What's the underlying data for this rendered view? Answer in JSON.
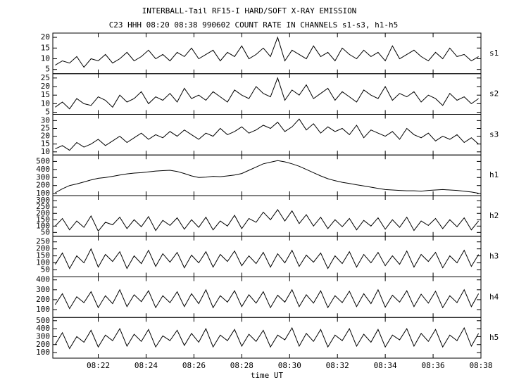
{
  "chart_data": [
    {
      "type": "line",
      "title": "INTERBALL-Tail RF15-I HARD/SOFT X-RAY EMISSION",
      "subtitle": "C23 HHH 08:20 08:38 990602  COUNT RATE IN CHANNELS s1-s3, h1-h5",
      "x": [
        20.2,
        20.5,
        20.8,
        21.1,
        21.4,
        21.7,
        22,
        22.3,
        22.6,
        22.9,
        23.2,
        23.5,
        23.8,
        24.1,
        24.4,
        24.7,
        25,
        25.3,
        25.6,
        25.9,
        26.2,
        26.5,
        26.8,
        27.1,
        27.4,
        27.7,
        28,
        28.3,
        28.6,
        28.9,
        29.2,
        29.5,
        29.8,
        30.1,
        30.4,
        30.7,
        31,
        31.3,
        31.6,
        31.9,
        32.2,
        32.5,
        32.8,
        33.1,
        33.4,
        33.7,
        34,
        34.3,
        34.6,
        34.9,
        35.2,
        35.5,
        35.8,
        36.1,
        36.4,
        36.7,
        37,
        37.3,
        37.6,
        37.9
      ],
      "series": [
        {
          "name": "s1",
          "color": "#000000",
          "values": [
            7,
            9,
            8,
            11,
            6,
            10,
            9,
            12,
            8,
            10,
            13,
            9,
            11,
            14,
            10,
            12,
            9,
            13,
            11,
            15,
            10,
            12,
            14,
            9,
            13,
            11,
            16,
            10,
            12,
            15,
            11,
            20,
            9,
            14,
            12,
            10,
            16,
            11,
            13,
            9,
            15,
            12,
            10,
            14,
            11,
            13,
            9,
            16,
            10,
            12,
            14,
            11,
            9,
            13,
            10,
            15,
            11,
            12,
            9,
            11
          ]
        }
      ],
      "xlim": [
        20.1,
        38
      ],
      "xticks": [
        22,
        24,
        26,
        28,
        30,
        32,
        34,
        36,
        38
      ],
      "ylim": [
        3,
        22
      ],
      "yticks": [
        5,
        10,
        15,
        20
      ]
    },
    {
      "type": "line",
      "x": [
        20.2,
        20.5,
        20.8,
        21.1,
        21.4,
        21.7,
        22,
        22.3,
        22.6,
        22.9,
        23.2,
        23.5,
        23.8,
        24.1,
        24.4,
        24.7,
        25,
        25.3,
        25.6,
        25.9,
        26.2,
        26.5,
        26.8,
        27.1,
        27.4,
        27.7,
        28,
        28.3,
        28.6,
        28.9,
        29.2,
        29.5,
        29.8,
        30.1,
        30.4,
        30.7,
        31,
        31.3,
        31.6,
        31.9,
        32.2,
        32.5,
        32.8,
        33.1,
        33.4,
        33.7,
        34,
        34.3,
        34.6,
        34.9,
        35.2,
        35.5,
        35.8,
        36.1,
        36.4,
        36.7,
        37,
        37.3,
        37.6,
        37.9
      ],
      "series": [
        {
          "name": "s2",
          "color": "#000000",
          "values": [
            8,
            11,
            7,
            13,
            10,
            9,
            14,
            12,
            8,
            15,
            11,
            13,
            17,
            10,
            14,
            12,
            16,
            11,
            19,
            13,
            15,
            12,
            17,
            14,
            11,
            18,
            15,
            13,
            20,
            16,
            14,
            25,
            12,
            18,
            15,
            21,
            13,
            16,
            19,
            12,
            17,
            14,
            11,
            18,
            15,
            13,
            20,
            12,
            16,
            14,
            17,
            11,
            15,
            13,
            9,
            16,
            12,
            14,
            10,
            13
          ]
        }
      ],
      "xlim": [
        20.1,
        38
      ],
      "xticks": [
        22,
        24,
        26,
        28,
        30,
        32,
        34,
        36,
        38
      ],
      "ylim": [
        3.8,
        27.5
      ],
      "yticks": [
        5,
        10,
        15,
        20,
        25
      ]
    },
    {
      "type": "line",
      "x": [
        20.2,
        20.5,
        20.8,
        21.1,
        21.4,
        21.7,
        22,
        22.3,
        22.6,
        22.9,
        23.2,
        23.5,
        23.8,
        24.1,
        24.4,
        24.7,
        25,
        25.3,
        25.6,
        25.9,
        26.2,
        26.5,
        26.8,
        27.1,
        27.4,
        27.7,
        28,
        28.3,
        28.6,
        28.9,
        29.2,
        29.5,
        29.8,
        30.1,
        30.4,
        30.7,
        31,
        31.3,
        31.6,
        31.9,
        32.2,
        32.5,
        32.8,
        33.1,
        33.4,
        33.7,
        34,
        34.3,
        34.6,
        34.9,
        35.2,
        35.5,
        35.8,
        36.1,
        36.4,
        36.7,
        37,
        37.3,
        37.6,
        37.9
      ],
      "series": [
        {
          "name": "s3",
          "color": "#000000",
          "values": [
            12,
            14,
            11,
            16,
            13,
            15,
            18,
            14,
            17,
            20,
            16,
            19,
            22,
            18,
            21,
            19,
            23,
            20,
            24,
            21,
            18,
            22,
            20,
            25,
            21,
            23,
            26,
            22,
            24,
            27,
            25,
            29,
            23,
            26,
            31,
            24,
            28,
            22,
            26,
            23,
            25,
            21,
            27,
            19,
            24,
            22,
            20,
            23,
            18,
            25,
            21,
            19,
            22,
            17,
            20,
            18,
            21,
            16,
            19,
            15
          ]
        }
      ],
      "xlim": [
        20.1,
        38
      ],
      "xticks": [
        22,
        24,
        26,
        28,
        30,
        32,
        34,
        36,
        38
      ],
      "ylim": [
        8,
        34
      ],
      "yticks": [
        10,
        15,
        20,
        25,
        30
      ]
    },
    {
      "type": "line",
      "x": [
        20.2,
        20.5,
        20.8,
        21.1,
        21.4,
        21.7,
        22,
        22.3,
        22.6,
        22.9,
        23.2,
        23.5,
        23.8,
        24.1,
        24.4,
        24.7,
        25,
        25.3,
        25.6,
        25.9,
        26.2,
        26.5,
        26.8,
        27.1,
        27.4,
        27.7,
        28,
        28.3,
        28.6,
        28.9,
        29.2,
        29.5,
        29.8,
        30.1,
        30.4,
        30.7,
        31,
        31.3,
        31.6,
        31.9,
        32.2,
        32.5,
        32.8,
        33.1,
        33.4,
        33.7,
        34,
        34.3,
        34.6,
        34.9,
        35.2,
        35.5,
        35.8,
        36.1,
        36.4,
        36.7,
        37,
        37.3,
        37.6,
        37.9
      ],
      "series": [
        {
          "name": "h1",
          "color": "#000000",
          "values": [
            110,
            160,
            200,
            220,
            245,
            270,
            290,
            300,
            315,
            330,
            345,
            355,
            360,
            370,
            380,
            385,
            390,
            375,
            350,
            320,
            300,
            305,
            315,
            310,
            320,
            330,
            350,
            390,
            430,
            470,
            490,
            510,
            495,
            470,
            440,
            400,
            360,
            320,
            285,
            260,
            240,
            225,
            210,
            195,
            180,
            165,
            150,
            145,
            140,
            135,
            135,
            130,
            140,
            145,
            150,
            145,
            140,
            130,
            120,
            105
          ]
        }
      ],
      "xlim": [
        20.1,
        38
      ],
      "xticks": [
        22,
        24,
        26,
        28,
        30,
        32,
        34,
        36,
        38
      ],
      "ylim": [
        75,
        580
      ],
      "yticks": [
        100,
        200,
        300,
        400,
        500
      ]
    },
    {
      "type": "line",
      "x": [
        20.2,
        20.5,
        20.8,
        21.1,
        21.4,
        21.7,
        22,
        22.3,
        22.6,
        22.9,
        23.2,
        23.5,
        23.8,
        24.1,
        24.4,
        24.7,
        25,
        25.3,
        25.6,
        25.9,
        26.2,
        26.5,
        26.8,
        27.1,
        27.4,
        27.7,
        28,
        28.3,
        28.6,
        28.9,
        29.2,
        29.5,
        29.8,
        30.1,
        30.4,
        30.7,
        31,
        31.3,
        31.6,
        31.9,
        32.2,
        32.5,
        32.8,
        33.1,
        33.4,
        33.7,
        34,
        34.3,
        34.6,
        34.9,
        35.2,
        35.5,
        35.8,
        36.1,
        36.4,
        36.7,
        37,
        37.3,
        37.6,
        37.9
      ],
      "series": [
        {
          "name": "h2",
          "color": "#000000",
          "values": [
            100,
            160,
            70,
            140,
            90,
            180,
            60,
            130,
            110,
            170,
            80,
            150,
            95,
            175,
            65,
            145,
            105,
            165,
            75,
            150,
            90,
            170,
            70,
            140,
            100,
            185,
            80,
            160,
            130,
            210,
            150,
            230,
            140,
            220,
            120,
            190,
            100,
            170,
            80,
            150,
            95,
            160,
            70,
            145,
            100,
            165,
            75,
            150,
            90,
            170,
            65,
            140,
            105,
            160,
            80,
            150,
            95,
            165,
            70,
            140
          ]
        }
      ],
      "xlim": [
        20.1,
        38
      ],
      "xticks": [
        22,
        24,
        26,
        28,
        30,
        32,
        34,
        36,
        38
      ],
      "ylim": [
        20,
        340
      ],
      "yticks": [
        50,
        100,
        150,
        200,
        250,
        300
      ]
    },
    {
      "type": "line",
      "x": [
        20.2,
        20.5,
        20.8,
        21.1,
        21.4,
        21.7,
        22,
        22.3,
        22.6,
        22.9,
        23.2,
        23.5,
        23.8,
        24.1,
        24.4,
        24.7,
        25,
        25.3,
        25.6,
        25.9,
        26.2,
        26.5,
        26.8,
        27.1,
        27.4,
        27.7,
        28,
        28.3,
        28.6,
        28.9,
        29.2,
        29.5,
        29.8,
        30.1,
        30.4,
        30.7,
        31,
        31.3,
        31.6,
        31.9,
        32.2,
        32.5,
        32.8,
        33.1,
        33.4,
        33.7,
        34,
        34.3,
        34.6,
        34.9,
        35.2,
        35.5,
        35.8,
        36.1,
        36.4,
        36.7,
        37,
        37.3,
        37.6,
        37.9
      ],
      "series": [
        {
          "name": "h3",
          "color": "#000000",
          "values": [
            90,
            170,
            60,
            150,
            100,
            200,
            70,
            160,
            110,
            180,
            60,
            150,
            95,
            190,
            75,
            165,
            105,
            175,
            65,
            155,
            100,
            180,
            70,
            160,
            110,
            185,
            80,
            150,
            95,
            175,
            70,
            165,
            100,
            190,
            75,
            155,
            105,
            170,
            60,
            150,
            95,
            180,
            70,
            160,
            100,
            175,
            80,
            150,
            90,
            185,
            70,
            160,
            110,
            175,
            65,
            150,
            100,
            190,
            75,
            160
          ]
        }
      ],
      "xlim": [
        20.1,
        38
      ],
      "xticks": [
        22,
        24,
        26,
        28,
        30,
        32,
        34,
        36,
        38
      ],
      "ylim": [
        0,
        290
      ],
      "yticks": [
        50,
        100,
        150,
        200,
        250
      ]
    },
    {
      "type": "line",
      "x": [
        20.2,
        20.5,
        20.8,
        21.1,
        21.4,
        21.7,
        22,
        22.3,
        22.6,
        22.9,
        23.2,
        23.5,
        23.8,
        24.1,
        24.4,
        24.7,
        25,
        25.3,
        25.6,
        25.9,
        26.2,
        26.5,
        26.8,
        27.1,
        27.4,
        27.7,
        28,
        28.3,
        28.6,
        28.9,
        29.2,
        29.5,
        29.8,
        30.1,
        30.4,
        30.7,
        31,
        31.3,
        31.6,
        31.9,
        32.2,
        32.5,
        32.8,
        33.1,
        33.4,
        33.7,
        34,
        34.3,
        34.6,
        34.9,
        35.2,
        35.5,
        35.8,
        36.1,
        36.4,
        36.7,
        37,
        37.3,
        37.6,
        37.9
      ],
      "series": [
        {
          "name": "h4",
          "color": "#000000",
          "values": [
            150,
            260,
            110,
            230,
            170,
            280,
            120,
            240,
            160,
            300,
            130,
            250,
            180,
            290,
            120,
            240,
            170,
            280,
            130,
            260,
            160,
            300,
            120,
            240,
            175,
            290,
            130,
            250,
            165,
            280,
            120,
            245,
            175,
            300,
            130,
            250,
            165,
            290,
            120,
            240,
            170,
            285,
            130,
            260,
            160,
            300,
            125,
            245,
            175,
            290,
            130,
            255,
            165,
            285,
            120,
            240,
            170,
            300,
            130,
            260
          ]
        }
      ],
      "xlim": [
        20.1,
        38
      ],
      "xticks": [
        22,
        24,
        26,
        28,
        30,
        32,
        34,
        36,
        38
      ],
      "ylim": [
        20,
        430
      ],
      "yticks": [
        100,
        200,
        300,
        400
      ]
    },
    {
      "type": "line",
      "xlabel": "time UT",
      "x": [
        20.2,
        20.5,
        20.8,
        21.1,
        21.4,
        21.7,
        22,
        22.3,
        22.6,
        22.9,
        23.2,
        23.5,
        23.8,
        24.1,
        24.4,
        24.7,
        25,
        25.3,
        25.6,
        25.9,
        26.2,
        26.5,
        26.8,
        27.1,
        27.4,
        27.7,
        28,
        28.3,
        28.6,
        28.9,
        29.2,
        29.5,
        29.8,
        30.1,
        30.4,
        30.7,
        31,
        31.3,
        31.6,
        31.9,
        32.2,
        32.5,
        32.8,
        33.1,
        33.4,
        33.7,
        34,
        34.3,
        34.6,
        34.9,
        35.2,
        35.5,
        35.8,
        36.1,
        36.4,
        36.7,
        37,
        37.3,
        37.6,
        37.9
      ],
      "series": [
        {
          "name": "h5",
          "color": "#000000",
          "values": [
            200,
            350,
            150,
            300,
            230,
            380,
            170,
            320,
            250,
            400,
            180,
            330,
            240,
            390,
            170,
            310,
            250,
            380,
            190,
            340,
            230,
            400,
            170,
            320,
            250,
            390,
            180,
            330,
            240,
            380,
            170,
            320,
            260,
            410,
            180,
            340,
            240,
            390,
            170,
            320,
            250,
            400,
            180,
            330,
            230,
            390,
            170,
            320,
            260,
            400,
            180,
            340,
            240,
            390,
            170,
            320,
            250,
            410,
            180,
            340
          ]
        }
      ],
      "xlim": [
        20.1,
        38
      ],
      "xticks": [
        {
          "value": 22,
          "label": "08:22"
        },
        {
          "value": 24,
          "label": "08:24"
        },
        {
          "value": 26,
          "label": "08:26"
        },
        {
          "value": 28,
          "label": "08:28"
        },
        {
          "value": 30,
          "label": "08:30"
        },
        {
          "value": 32,
          "label": "08:32"
        },
        {
          "value": 34,
          "label": "08:34"
        },
        {
          "value": 36,
          "label": "08:36"
        },
        {
          "value": 38,
          "label": "08:38"
        }
      ],
      "ylim": [
        30,
        540
      ],
      "yticks": [
        100,
        200,
        300,
        400,
        500
      ]
    }
  ]
}
